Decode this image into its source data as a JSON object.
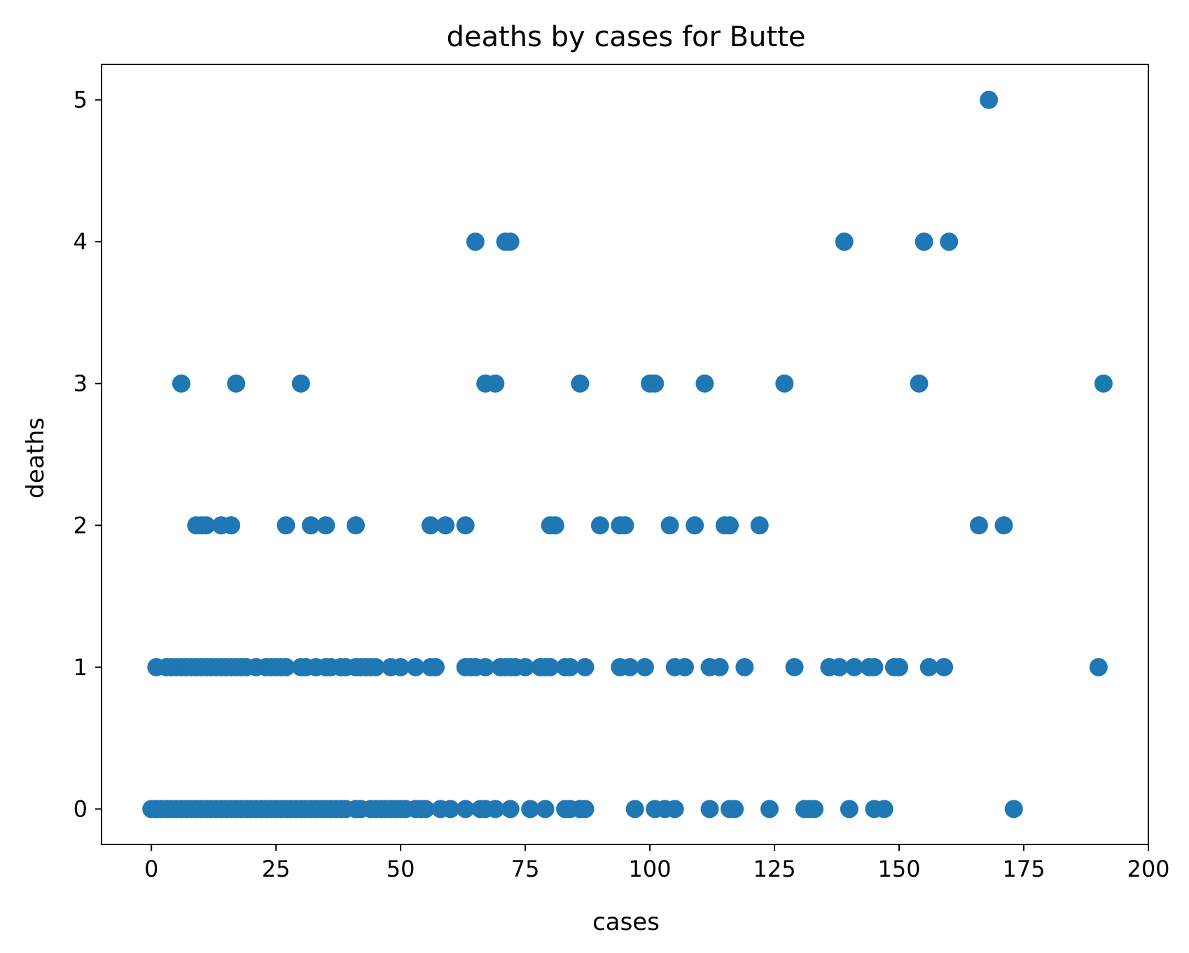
{
  "chart_data": {
    "type": "scatter",
    "title": "deaths by cases for Butte",
    "xlabel": "cases",
    "ylabel": "deaths",
    "xlim": [
      -10,
      200
    ],
    "ylim": [
      -0.25,
      5.25
    ],
    "xticks": [
      0,
      25,
      50,
      75,
      100,
      125,
      150,
      175,
      200
    ],
    "yticks": [
      0,
      1,
      2,
      3,
      4,
      5
    ],
    "grid": false,
    "legend": "none",
    "marker_color": "#1f77b4",
    "points": [
      [
        0,
        0
      ],
      [
        1,
        0
      ],
      [
        2,
        0
      ],
      [
        3,
        0
      ],
      [
        4,
        0
      ],
      [
        5,
        0
      ],
      [
        6,
        0
      ],
      [
        7,
        0
      ],
      [
        8,
        0
      ],
      [
        9,
        0
      ],
      [
        10,
        0
      ],
      [
        11,
        0
      ],
      [
        12,
        0
      ],
      [
        13,
        0
      ],
      [
        14,
        0
      ],
      [
        15,
        0
      ],
      [
        16,
        0
      ],
      [
        17,
        0
      ],
      [
        18,
        0
      ],
      [
        19,
        0
      ],
      [
        20,
        0
      ],
      [
        21,
        0
      ],
      [
        22,
        0
      ],
      [
        23,
        0
      ],
      [
        24,
        0
      ],
      [
        25,
        0
      ],
      [
        26,
        0
      ],
      [
        27,
        0
      ],
      [
        28,
        0
      ],
      [
        29,
        0
      ],
      [
        30,
        0
      ],
      [
        31,
        0
      ],
      [
        32,
        0
      ],
      [
        33,
        0
      ],
      [
        34,
        0
      ],
      [
        35,
        0
      ],
      [
        36,
        0
      ],
      [
        37,
        0
      ],
      [
        38,
        0
      ],
      [
        39,
        0
      ],
      [
        41,
        0
      ],
      [
        42,
        0
      ],
      [
        44,
        0
      ],
      [
        45,
        0
      ],
      [
        46,
        0
      ],
      [
        47,
        0
      ],
      [
        48,
        0
      ],
      [
        49,
        0
      ],
      [
        50,
        0
      ],
      [
        51,
        0
      ],
      [
        53,
        0
      ],
      [
        54,
        0
      ],
      [
        55,
        0
      ],
      [
        58,
        0
      ],
      [
        60,
        0
      ],
      [
        63,
        0
      ],
      [
        66,
        0
      ],
      [
        67,
        0
      ],
      [
        69,
        0
      ],
      [
        72,
        0
      ],
      [
        76,
        0
      ],
      [
        79,
        0
      ],
      [
        83,
        0
      ],
      [
        84,
        0
      ],
      [
        86,
        0
      ],
      [
        87,
        0
      ],
      [
        97,
        0
      ],
      [
        101,
        0
      ],
      [
        103,
        0
      ],
      [
        105,
        0
      ],
      [
        112,
        0
      ],
      [
        116,
        0
      ],
      [
        117,
        0
      ],
      [
        124,
        0
      ],
      [
        131,
        0
      ],
      [
        132,
        0
      ],
      [
        133,
        0
      ],
      [
        140,
        0
      ],
      [
        145,
        0
      ],
      [
        147,
        0
      ],
      [
        173,
        0
      ],
      [
        1,
        1
      ],
      [
        3,
        1
      ],
      [
        4,
        1
      ],
      [
        5,
        1
      ],
      [
        6,
        1
      ],
      [
        7,
        1
      ],
      [
        8,
        1
      ],
      [
        9,
        1
      ],
      [
        10,
        1
      ],
      [
        11,
        1
      ],
      [
        12,
        1
      ],
      [
        13,
        1
      ],
      [
        14,
        1
      ],
      [
        15,
        1
      ],
      [
        16,
        1
      ],
      [
        17,
        1
      ],
      [
        18,
        1
      ],
      [
        19,
        1
      ],
      [
        21,
        1
      ],
      [
        23,
        1
      ],
      [
        24,
        1
      ],
      [
        25,
        1
      ],
      [
        26,
        1
      ],
      [
        27,
        1
      ],
      [
        30,
        1
      ],
      [
        31,
        1
      ],
      [
        33,
        1
      ],
      [
        35,
        1
      ],
      [
        36,
        1
      ],
      [
        38,
        1
      ],
      [
        39,
        1
      ],
      [
        41,
        1
      ],
      [
        42,
        1
      ],
      [
        43,
        1
      ],
      [
        44,
        1
      ],
      [
        45,
        1
      ],
      [
        48,
        1
      ],
      [
        50,
        1
      ],
      [
        53,
        1
      ],
      [
        56,
        1
      ],
      [
        57,
        1
      ],
      [
        63,
        1
      ],
      [
        64,
        1
      ],
      [
        65,
        1
      ],
      [
        67,
        1
      ],
      [
        70,
        1
      ],
      [
        71,
        1
      ],
      [
        72,
        1
      ],
      [
        73,
        1
      ],
      [
        75,
        1
      ],
      [
        78,
        1
      ],
      [
        79,
        1
      ],
      [
        80,
        1
      ],
      [
        83,
        1
      ],
      [
        84,
        1
      ],
      [
        87,
        1
      ],
      [
        94,
        1
      ],
      [
        96,
        1
      ],
      [
        99,
        1
      ],
      [
        105,
        1
      ],
      [
        107,
        1
      ],
      [
        112,
        1
      ],
      [
        114,
        1
      ],
      [
        119,
        1
      ],
      [
        129,
        1
      ],
      [
        136,
        1
      ],
      [
        138,
        1
      ],
      [
        141,
        1
      ],
      [
        144,
        1
      ],
      [
        145,
        1
      ],
      [
        149,
        1
      ],
      [
        150,
        1
      ],
      [
        156,
        1
      ],
      [
        159,
        1
      ],
      [
        190,
        1
      ],
      [
        9,
        2
      ],
      [
        10,
        2
      ],
      [
        11,
        2
      ],
      [
        14,
        2
      ],
      [
        16,
        2
      ],
      [
        27,
        2
      ],
      [
        32,
        2
      ],
      [
        35,
        2
      ],
      [
        41,
        2
      ],
      [
        56,
        2
      ],
      [
        59,
        2
      ],
      [
        63,
        2
      ],
      [
        80,
        2
      ],
      [
        81,
        2
      ],
      [
        90,
        2
      ],
      [
        94,
        2
      ],
      [
        95,
        2
      ],
      [
        104,
        2
      ],
      [
        109,
        2
      ],
      [
        115,
        2
      ],
      [
        116,
        2
      ],
      [
        122,
        2
      ],
      [
        166,
        2
      ],
      [
        171,
        2
      ],
      [
        6,
        3
      ],
      [
        17,
        3
      ],
      [
        30,
        3
      ],
      [
        67,
        3
      ],
      [
        69,
        3
      ],
      [
        86,
        3
      ],
      [
        100,
        3
      ],
      [
        101,
        3
      ],
      [
        111,
        3
      ],
      [
        127,
        3
      ],
      [
        154,
        3
      ],
      [
        191,
        3
      ],
      [
        65,
        4
      ],
      [
        71,
        4
      ],
      [
        72,
        4
      ],
      [
        139,
        4
      ],
      [
        155,
        4
      ],
      [
        160,
        4
      ],
      [
        168,
        5
      ]
    ]
  }
}
